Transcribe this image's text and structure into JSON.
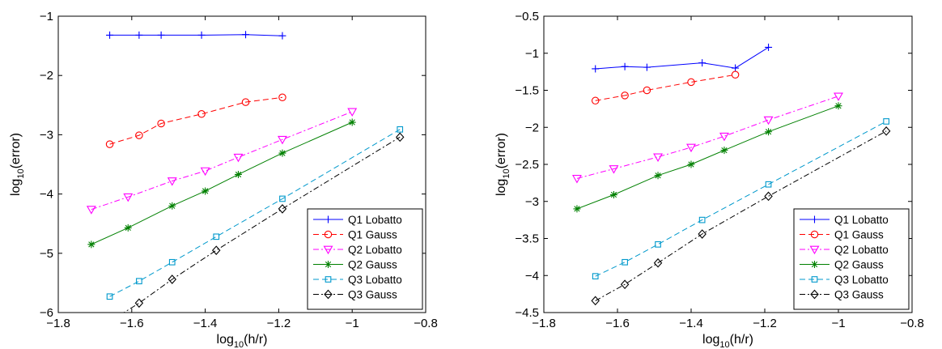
{
  "chart_data": [
    {
      "type": "line",
      "xlabel": "log10(h/r)",
      "ylabel": "log10(error)",
      "xlim": [
        -1.8,
        -0.8
      ],
      "ylim": [
        -6,
        -1
      ],
      "xticks": [
        -1.8,
        -1.6,
        -1.4,
        -1.2,
        -1,
        -0.8
      ],
      "yticks": [
        -6,
        -5,
        -4,
        -3,
        -2,
        -1
      ],
      "xtick_labels": [
        "−1.8",
        "−1.6",
        "−1.4",
        "−1.2",
        "−1",
        "−0.8"
      ],
      "ytick_labels": [
        "−6",
        "−5",
        "−4",
        "−3",
        "−2",
        "−1"
      ],
      "grid": false,
      "legend_position": "bottom-right",
      "series": [
        {
          "name": "Q1 Lobatto",
          "color": "#0000ff",
          "dash": "solid",
          "marker": "plus",
          "x": [
            -1.66,
            -1.58,
            -1.52,
            -1.41,
            -1.29,
            -1.19
          ],
          "y": [
            -1.32,
            -1.32,
            -1.32,
            -1.32,
            -1.31,
            -1.33
          ]
        },
        {
          "name": "Q1 Gauss",
          "color": "#ff0000",
          "dash": "dashed",
          "marker": "circle",
          "x": [
            -1.66,
            -1.58,
            -1.52,
            -1.41,
            -1.29,
            -1.19
          ],
          "y": [
            -3.16,
            -3.01,
            -2.81,
            -2.65,
            -2.45,
            -2.37
          ]
        },
        {
          "name": "Q2 Lobatto",
          "color": "#ff00ff",
          "dash": "dashdot",
          "marker": "triangle-down",
          "x": [
            -1.71,
            -1.61,
            -1.49,
            -1.4,
            -1.31,
            -1.19,
            -1.0
          ],
          "y": [
            -4.26,
            -4.05,
            -3.78,
            -3.61,
            -3.38,
            -3.08,
            -2.61
          ]
        },
        {
          "name": "Q2 Gauss",
          "color": "#008000",
          "dash": "solid",
          "marker": "asterisk",
          "x": [
            -1.71,
            -1.61,
            -1.49,
            -1.4,
            -1.31,
            -1.19,
            -1.0
          ],
          "y": [
            -4.85,
            -4.57,
            -4.2,
            -3.95,
            -3.67,
            -3.31,
            -2.79
          ]
        },
        {
          "name": "Q3 Lobatto",
          "color": "#0099cc",
          "dash": "dashed",
          "marker": "square",
          "x": [
            -1.66,
            -1.58,
            -1.49,
            -1.37,
            -1.19,
            -0.87
          ],
          "y": [
            -5.73,
            -5.47,
            -5.15,
            -4.72,
            -4.08,
            -2.91
          ]
        },
        {
          "name": "Q3 Gauss",
          "color": "#000000",
          "dash": "dashdot",
          "marker": "diamond",
          "x": [
            -1.66,
            -1.58,
            -1.49,
            -1.37,
            -1.19,
            -0.87
          ],
          "y": [
            -6.15,
            -5.84,
            -5.44,
            -4.95,
            -4.25,
            -3.04
          ]
        }
      ]
    },
    {
      "type": "line",
      "xlabel": "log10(h/r)",
      "ylabel": "log10(error)",
      "xlim": [
        -1.8,
        -0.8
      ],
      "ylim": [
        -4.5,
        -0.5
      ],
      "xticks": [
        -1.8,
        -1.6,
        -1.4,
        -1.2,
        -1,
        -0.8
      ],
      "yticks": [
        -4.5,
        -4,
        -3.5,
        -3,
        -2.5,
        -2,
        -1.5,
        -1,
        -0.5
      ],
      "xtick_labels": [
        "−1.8",
        "−1.6",
        "−1.4",
        "−1.2",
        "−1",
        "−0.8"
      ],
      "ytick_labels": [
        "−4.5",
        "−4",
        "−3.5",
        "−3",
        "−2.5",
        "−2",
        "−1.5",
        "−1",
        "−0.5"
      ],
      "grid": false,
      "legend_position": "bottom-right",
      "series": [
        {
          "name": "Q1 Lobatto",
          "color": "#0000ff",
          "dash": "solid",
          "marker": "plus",
          "x": [
            -1.66,
            -1.58,
            -1.52,
            -1.37,
            -1.28,
            -1.19
          ],
          "y": [
            -1.21,
            -1.18,
            -1.19,
            -1.13,
            -1.2,
            -0.92
          ]
        },
        {
          "name": "Q1 Gauss",
          "color": "#ff0000",
          "dash": "dashed",
          "marker": "circle",
          "x": [
            -1.66,
            -1.58,
            -1.52,
            -1.4,
            -1.28
          ],
          "y": [
            -1.64,
            -1.57,
            -1.5,
            -1.39,
            -1.29
          ]
        },
        {
          "name": "Q2 Lobatto",
          "color": "#ff00ff",
          "dash": "dashdot",
          "marker": "triangle-down",
          "x": [
            -1.71,
            -1.61,
            -1.49,
            -1.4,
            -1.31,
            -1.19,
            -1.0
          ],
          "y": [
            -2.69,
            -2.56,
            -2.4,
            -2.27,
            -2.12,
            -1.9,
            -1.58
          ]
        },
        {
          "name": "Q2 Gauss",
          "color": "#008000",
          "dash": "solid",
          "marker": "asterisk",
          "x": [
            -1.71,
            -1.61,
            -1.49,
            -1.4,
            -1.31,
            -1.19,
            -1.0
          ],
          "y": [
            -3.1,
            -2.91,
            -2.65,
            -2.5,
            -2.31,
            -2.06,
            -1.71
          ]
        },
        {
          "name": "Q3 Lobatto",
          "color": "#0099cc",
          "dash": "dashed",
          "marker": "square",
          "x": [
            -1.66,
            -1.58,
            -1.49,
            -1.37,
            -1.19,
            -0.87
          ],
          "y": [
            -4.01,
            -3.82,
            -3.58,
            -3.25,
            -2.77,
            -1.92
          ]
        },
        {
          "name": "Q3 Gauss",
          "color": "#000000",
          "dash": "dashdot",
          "marker": "diamond",
          "x": [
            -1.66,
            -1.58,
            -1.49,
            -1.37,
            -1.19,
            -0.87
          ],
          "y": [
            -4.34,
            -4.12,
            -3.83,
            -3.44,
            -2.93,
            -2.05
          ]
        }
      ]
    }
  ]
}
